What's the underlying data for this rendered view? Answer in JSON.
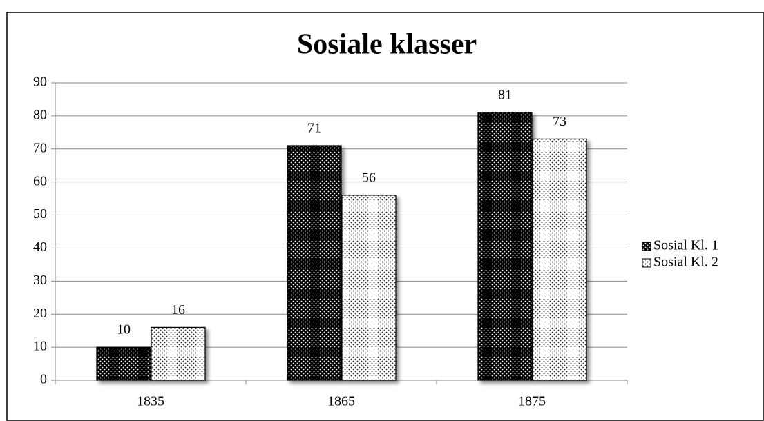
{
  "chart_data": {
    "type": "bar",
    "title": "Sosiale klasser",
    "categories": [
      "1835",
      "1865",
      "1875"
    ],
    "series": [
      {
        "name": "Sosial Kl. 1",
        "color": "#000000",
        "values": [
          10,
          71,
          81
        ]
      },
      {
        "name": "Sosial Kl. 2",
        "color": "#ffffff",
        "values": [
          16,
          56,
          73
        ]
      }
    ],
    "ylim": [
      0,
      90
    ],
    "yticks": [
      0,
      10,
      20,
      30,
      40,
      50,
      60,
      70,
      80,
      90
    ],
    "grid": true,
    "legend": "right"
  }
}
